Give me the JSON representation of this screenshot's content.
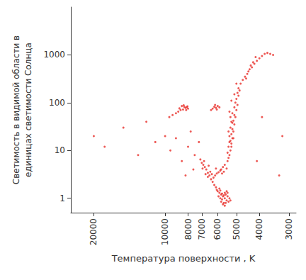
{
  "chart_data": {
    "type": "scatter",
    "x_label": "Температура поверхности , K",
    "y_label": "Светимость в видимой области в\nединицах светимости Солнца",
    "log": true,
    "grid": false,
    "color": "#e8302a",
    "marker": "circle",
    "xlim": [
      25000,
      2800
    ],
    "xticks": [
      20000,
      10000,
      8000,
      7000,
      6000,
      5000,
      4000,
      3000
    ],
    "ylim": [
      0.5,
      10000
    ],
    "yticks": [
      1,
      10,
      100,
      1000
    ],
    "x": [
      5600,
      5700,
      5500,
      5800,
      5900,
      5650,
      5450,
      5550,
      5750,
      6000,
      5850,
      5400,
      5600,
      5700,
      5500,
      5950,
      6050,
      5350,
      5800,
      5650,
      5550,
      5900,
      5450,
      5750,
      5300,
      5600,
      5850,
      6100,
      6200,
      6300,
      6400,
      6500,
      6600,
      6700,
      6800,
      6900,
      7000,
      6600,
      6450,
      6350,
      6250,
      6150,
      6050,
      5950,
      5850,
      6100,
      6550,
      6750,
      6850,
      7100,
      6950,
      5800,
      5700,
      5650,
      5600,
      5500,
      5750,
      5450,
      5400,
      5350,
      5300,
      5400,
      5250,
      5300,
      5200,
      5350,
      5250,
      5150,
      5200,
      5300,
      5100,
      5200,
      5150,
      5050,
      5100,
      5200,
      5000,
      5100,
      4950,
      5050,
      5000,
      4900,
      4950,
      4850,
      4900,
      5250,
      5450,
      5350,
      5150,
      5400,
      5250,
      5300,
      5350,
      5250,
      5100,
      5000,
      4800,
      4700,
      4600,
      4500,
      4400,
      4300,
      4200,
      4100,
      4000,
      3900,
      3800,
      3700,
      3600,
      4450,
      4250,
      4350,
      4550,
      4150,
      3500,
      8000,
      8100,
      8200,
      8300,
      8400,
      8500,
      8600,
      8800,
      9000,
      8150,
      8350,
      8700,
      9300,
      9600,
      8050,
      5900,
      6000,
      6100,
      6200,
      6300,
      6050,
      6150,
      6400,
      20000,
      18000,
      15000,
      13000,
      11000,
      10000,
      9500,
      9000,
      8500,
      8000,
      7500,
      7800,
      7200,
      12000,
      7600,
      8200,
      3900,
      3200,
      3300,
      4100
    ],
    "values": [
      1.0,
      1.1,
      0.9,
      1.2,
      1.3,
      0.8,
      1.1,
      1.2,
      0.95,
      1.4,
      1.0,
      0.85,
      1.3,
      0.75,
      1.4,
      1.1,
      1.5,
      1.0,
      0.85,
      1.15,
      0.8,
      1.6,
      1.3,
      1.25,
      0.9,
      0.7,
      1.45,
      1.7,
      1.9,
      2.2,
      2.5,
      3.0,
      3.4,
      4.0,
      4.5,
      5.0,
      5.5,
      2.8,
      3.6,
      3.2,
      2.7,
      3.0,
      3.3,
      3.5,
      3.8,
      4.2,
      4.8,
      3.2,
      6,
      6.5,
      4.2,
      4,
      4.5,
      3.6,
      5,
      4.2,
      3.3,
      6,
      7,
      8,
      10,
      12,
      14,
      16,
      18,
      20,
      22,
      25,
      28,
      30,
      35,
      38,
      42,
      50,
      55,
      60,
      70,
      80,
      90,
      100,
      120,
      140,
      160,
      180,
      200,
      12,
      9,
      15,
      18,
      25,
      40,
      50,
      65,
      110,
      150,
      250,
      250,
      300,
      350,
      400,
      500,
      550,
      650,
      750,
      850,
      950,
      1050,
      1100,
      1050,
      450,
      700,
      600,
      320,
      900,
      1000,
      75,
      80,
      78,
      82,
      72,
      85,
      70,
      65,
      60,
      70,
      88,
      76,
      55,
      50,
      84,
      80,
      85,
      78,
      82,
      75,
      72,
      90,
      70,
      20,
      12,
      30,
      8,
      15,
      20,
      10,
      18,
      6,
      12,
      8,
      25,
      15,
      40,
      4,
      3,
      50,
      20,
      3,
      6
    ]
  }
}
